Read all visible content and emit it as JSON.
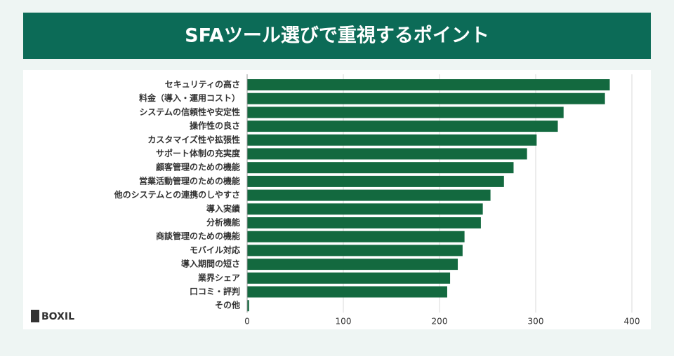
{
  "chart_data": {
    "type": "barh",
    "title": "SFAツール選びで重視するポイント",
    "categories": [
      "セキュリティの高さ",
      "料金（導入・運用コスト）",
      "システムの信頼性や安定性",
      "操作性の良さ",
      "カスタマイズ性や拡張性",
      "サポート体制の充実度",
      "顧客管理のための機能",
      "営業活動管理のための機能",
      "他のシステムとの連携のしやすさ",
      "導入実績",
      "分析機能",
      "商談管理のための機能",
      "モバイル対応",
      "導入期間の短さ",
      "業界シェア",
      "口コミ・評判",
      "その他"
    ],
    "values": [
      377,
      372,
      329,
      323,
      301,
      291,
      277,
      267,
      253,
      245,
      243,
      226,
      224,
      219,
      211,
      208,
      2
    ],
    "color": "#13693f",
    "xlim": [
      0,
      400
    ],
    "xticks": [
      0,
      100,
      200,
      300,
      400
    ],
    "grid": true
  },
  "logo": "BOXIL"
}
